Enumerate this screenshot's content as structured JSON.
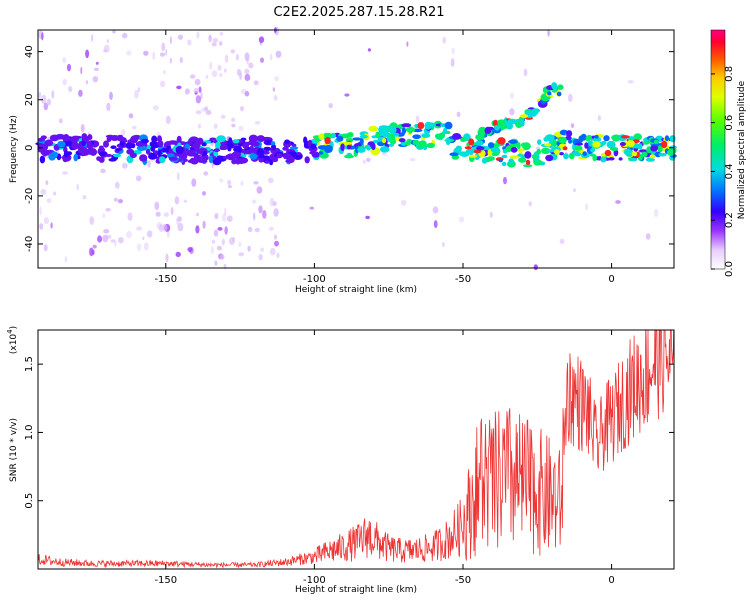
{
  "title": "C2E2.2025.287.15.28.R21",
  "chart_data": [
    {
      "type": "heatmap",
      "xlabel": "Height of straight line (km)",
      "ylabel": "Frequency (Hz)",
      "xlim": [
        -193,
        21
      ],
      "ylim": [
        -50,
        49
      ],
      "xticks": [
        -150,
        -100,
        -50,
        0
      ],
      "xtick_labels": [
        "-150",
        "-100",
        "-50",
        "0"
      ],
      "yticks": [
        -40,
        -20,
        0,
        20,
        40
      ],
      "ytick_labels": [
        "-40",
        "-20",
        "0",
        "20",
        "40"
      ],
      "colorbar": {
        "label": "Normalized spectral amplitude",
        "range": [
          0,
          0.98
        ],
        "ticks": [
          0.0,
          0.2,
          0.4,
          0.6,
          0.8
        ],
        "tick_labels": [
          "0.0",
          "0.2",
          "0.4",
          "0.6",
          "0.8"
        ]
      },
      "ridge": [
        {
          "x": -193,
          "y": 0
        },
        {
          "x": -170,
          "y": 0
        },
        {
          "x": -150,
          "y": -1
        },
        {
          "x": -130,
          "y": -1
        },
        {
          "x": -115,
          "y": -1
        },
        {
          "x": -100,
          "y": 0
        },
        {
          "x": -90,
          "y": 1
        },
        {
          "x": -80,
          "y": 3
        },
        {
          "x": -70,
          "y": 5
        },
        {
          "x": -60,
          "y": 5
        },
        {
          "x": -55,
          "y": 5
        },
        {
          "x": -52,
          "y": 0
        },
        {
          "x": -45,
          "y": 0
        },
        {
          "x": -35,
          "y": -2
        },
        {
          "x": -25,
          "y": -3
        },
        {
          "x": -18,
          "y": 2
        },
        {
          "x": -10,
          "y": 0
        },
        {
          "x": 0,
          "y": 0
        },
        {
          "x": 10,
          "y": 0
        },
        {
          "x": 20,
          "y": -1
        }
      ],
      "branch": [
        {
          "x": -45,
          "y": 4
        },
        {
          "x": -40,
          "y": 8
        },
        {
          "x": -30,
          "y": 12
        },
        {
          "x": -25,
          "y": 17
        },
        {
          "x": -22,
          "y": 22
        },
        {
          "x": -20,
          "y": 25
        },
        {
          "x": -17,
          "y": 24
        }
      ]
    },
    {
      "type": "line",
      "xlabel": "Height of straight line (km)",
      "ylabel": "SNR (10 * v/v)",
      "y_scale_label": "(x10",
      "y_scale_exp": "4",
      "y_scale_close": ")",
      "xlim": [
        -193,
        21
      ],
      "ylim": [
        0,
        17500
      ],
      "xticks": [
        -150,
        -100,
        -50,
        0
      ],
      "xtick_labels": [
        "-150",
        "-100",
        "-50",
        "0"
      ],
      "yticks": [
        5000,
        10000,
        15000
      ],
      "ytick_labels": [
        "0.5",
        "1.0",
        "1.5"
      ],
      "color": "#ee3333",
      "series": [
        {
          "values": [
            {
              "x": -193,
              "y": 700
            },
            {
              "x": -185,
              "y": 500
            },
            {
              "x": -175,
              "y": 400
            },
            {
              "x": -165,
              "y": 400
            },
            {
              "x": -150,
              "y": 400
            },
            {
              "x": -135,
              "y": 300
            },
            {
              "x": -120,
              "y": 300
            },
            {
              "x": -110,
              "y": 500
            },
            {
              "x": -100,
              "y": 900
            },
            {
              "x": -95,
              "y": 1300
            },
            {
              "x": -90,
              "y": 1600
            },
            {
              "x": -85,
              "y": 2000
            },
            {
              "x": -82,
              "y": 2500
            },
            {
              "x": -78,
              "y": 1900
            },
            {
              "x": -75,
              "y": 1500
            },
            {
              "x": -70,
              "y": 1300
            },
            {
              "x": -65,
              "y": 1400
            },
            {
              "x": -60,
              "y": 1600
            },
            {
              "x": -55,
              "y": 2200
            },
            {
              "x": -50,
              "y": 3200
            },
            {
              "x": -47,
              "y": 5000
            },
            {
              "x": -44,
              "y": 7000
            },
            {
              "x": -40,
              "y": 6500
            },
            {
              "x": -35,
              "y": 7000
            },
            {
              "x": -30,
              "y": 6500
            },
            {
              "x": -25,
              "y": 6000
            },
            {
              "x": -20,
              "y": 5500
            },
            {
              "x": -17,
              "y": 5000
            },
            {
              "x": -15,
              "y": 13000
            },
            {
              "x": -12,
              "y": 12500
            },
            {
              "x": -8,
              "y": 11500
            },
            {
              "x": -5,
              "y": 9000
            },
            {
              "x": -2,
              "y": 10500
            },
            {
              "x": 0,
              "y": 10800
            },
            {
              "x": 3,
              "y": 12000
            },
            {
              "x": 6,
              "y": 13000
            },
            {
              "x": 10,
              "y": 14000
            },
            {
              "x": 14,
              "y": 15000
            },
            {
              "x": 17,
              "y": 16000
            },
            {
              "x": 20,
              "y": 15000
            }
          ]
        }
      ]
    }
  ]
}
